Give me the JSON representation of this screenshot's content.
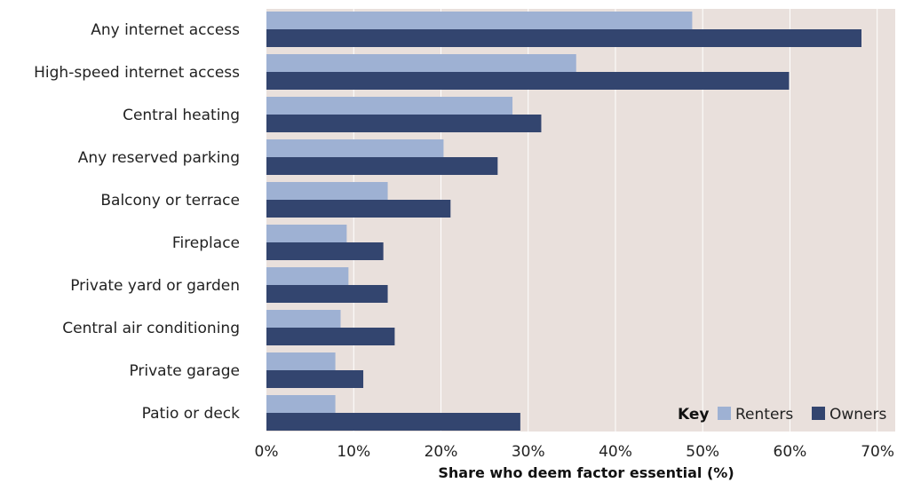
{
  "chart_data": {
    "type": "bar",
    "orientation": "horizontal",
    "categories": [
      "Any internet access",
      "High-speed internet access",
      "Central heating",
      "Any reserved parking",
      "Balcony or terrace",
      "Fireplace",
      "Private yard or garden",
      "Central air conditioning",
      "Private garage",
      "Patio or deck"
    ],
    "series": [
      {
        "name": "Renters",
        "color": "#9eb1d3",
        "values": [
          48.8,
          35.5,
          28.2,
          20.3,
          13.9,
          9.2,
          9.4,
          8.5,
          7.9,
          7.9
        ]
      },
      {
        "name": "Owners",
        "color": "#33456f",
        "values": [
          68.2,
          59.9,
          31.5,
          26.5,
          21.1,
          13.4,
          13.9,
          14.7,
          11.1,
          29.1
        ]
      }
    ],
    "xlim": [
      0,
      70
    ],
    "xticks": [
      "0%",
      "10%",
      "20%",
      "30%",
      "40%",
      "50%",
      "60%",
      "70%"
    ],
    "xlabel": "Share who deem factor essential (%)",
    "ylabel": "",
    "title": "",
    "grid": true,
    "background": "#e9e0dc",
    "legend": {
      "title": "Key",
      "position": "bottom-right"
    }
  }
}
